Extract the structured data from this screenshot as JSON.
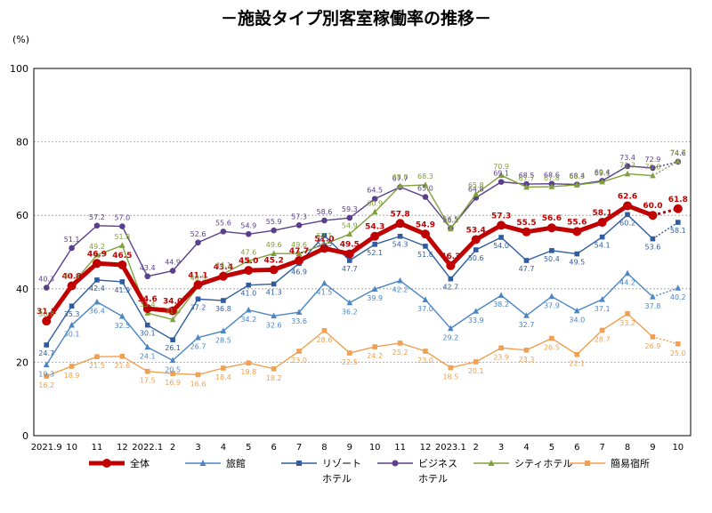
{
  "chart_data": {
    "type": "line",
    "title": "－施設タイプ別客室稼働率の推移－",
    "unit": "(%)",
    "ylim": [
      0,
      100
    ],
    "yticks": [
      0,
      20,
      40,
      60,
      80,
      100
    ],
    "grid": true,
    "legend_position": "bottom",
    "categories": [
      "2021.9",
      "10",
      "11",
      "12",
      "2022.1",
      "2",
      "3",
      "4",
      "5",
      "6",
      "7",
      "8",
      "9",
      "10",
      "11",
      "12",
      "2023.1",
      "2",
      "3",
      "4",
      "5",
      "6",
      "7",
      "8",
      "9",
      "10"
    ],
    "series": [
      {
        "name": "全体",
        "color": "#c00000",
        "marker": "circle",
        "main": true,
        "values": [
          31.2,
          40.8,
          46.9,
          46.5,
          34.6,
          34.0,
          41.1,
          43.4,
          45.0,
          45.2,
          47.7,
          51.0,
          49.5,
          54.3,
          57.8,
          54.9,
          46.3,
          53.4,
          57.3,
          55.5,
          56.6,
          55.6,
          58.1,
          62.6,
          60.0,
          61.8
        ]
      },
      {
        "name": "旅館",
        "color": "#4a86c6",
        "marker": "triangle",
        "values": [
          19.3,
          30.1,
          36.4,
          32.5,
          24.1,
          20.5,
          26.7,
          28.5,
          34.2,
          32.6,
          33.6,
          41.5,
          36.2,
          39.9,
          42.2,
          37.0,
          29.2,
          33.9,
          38.2,
          32.7,
          37.9,
          34.0,
          37.1,
          44.2,
          37.8,
          40.2
        ]
      },
      {
        "name": "リゾートホテル",
        "name_lines": [
          "リゾート",
          "ホテル"
        ],
        "color": "#2e5c9e",
        "marker": "square",
        "values": [
          24.7,
          35.3,
          42.4,
          41.9,
          30.1,
          26.1,
          37.2,
          36.8,
          41.0,
          41.3,
          46.9,
          54.5,
          47.7,
          52.1,
          54.3,
          51.6,
          42.7,
          50.6,
          54.0,
          47.7,
          50.4,
          49.5,
          54.1,
          60.2,
          53.6,
          58.1
        ]
      },
      {
        "name": "ビジネスホテル",
        "name_lines": [
          "ビジネス",
          "ホテル"
        ],
        "color": "#5b3f8a",
        "marker": "circle",
        "values": [
          40.3,
          51.1,
          57.2,
          57.0,
          43.4,
          44.9,
          52.6,
          55.6,
          54.9,
          55.9,
          57.3,
          58.6,
          59.3,
          64.5,
          67.7,
          65.0,
          56.5,
          64.8,
          69.1,
          68.5,
          68.6,
          68.4,
          69.4,
          73.4,
          72.9,
          74.6
        ]
      },
      {
        "name": "シティホテル",
        "color": "#7fa03a",
        "marker": "triangle",
        "values": [
          30.8,
          41.0,
          49.2,
          51.8,
          33.4,
          31.6,
          40.5,
          44.1,
          47.6,
          49.6,
          49.6,
          52.1,
          54.9,
          60.9,
          68.0,
          68.3,
          56.3,
          65.8,
          70.9,
          67.7,
          67.8,
          68.3,
          69.1,
          71.3,
          70.8,
          74.7
        ]
      },
      {
        "name": "簡易宿所",
        "color": "#f0a050",
        "marker": "square",
        "values": [
          16.2,
          18.9,
          21.5,
          21.6,
          17.5,
          16.9,
          16.6,
          18.4,
          19.8,
          18.2,
          23.0,
          28.6,
          22.5,
          24.2,
          25.2,
          23.0,
          18.5,
          20.1,
          23.9,
          23.3,
          26.5,
          22.1,
          28.7,
          33.2,
          26.9,
          25.0
        ]
      }
    ]
  }
}
